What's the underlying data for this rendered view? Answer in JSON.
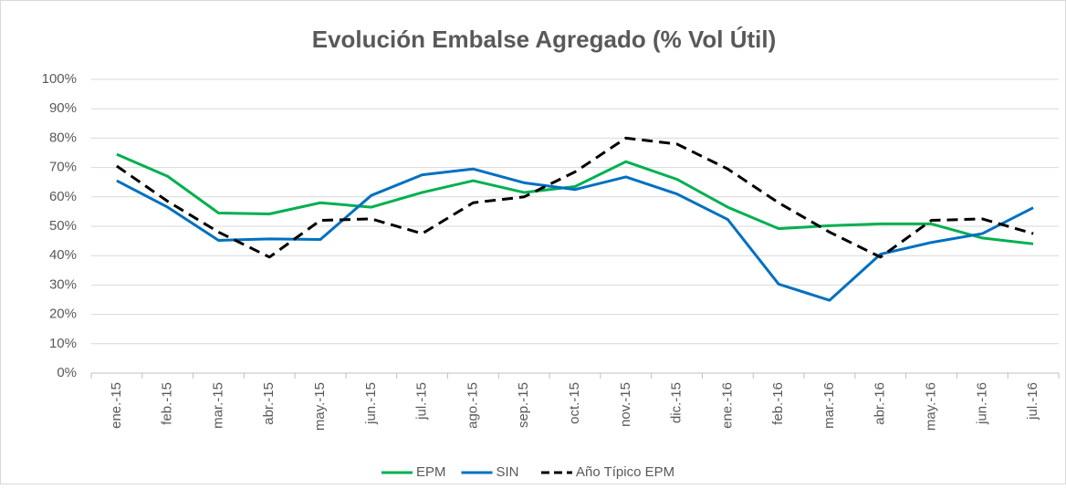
{
  "chart_data": {
    "type": "line",
    "title": "Evolución Embalse Agregado (% Vol Útil)",
    "categories": [
      "ene.-15",
      "feb.-15",
      "mar.-15",
      "abr.-15",
      "may.-15",
      "jun.-15",
      "jul.-15",
      "ago.-15",
      "sep.-15",
      "oct.-15",
      "nov.-15",
      "dic.-15",
      "ene.-16",
      "feb.-16",
      "mar.-16",
      "abr.-16",
      "may.-16",
      "jun.-16",
      "jul.-16"
    ],
    "series": [
      {
        "name": "EPM",
        "color": "#00b050",
        "dashed": false,
        "values": [
          74.5,
          67,
          54.5,
          54.2,
          58,
          56.5,
          61.5,
          65.5,
          61.5,
          63.5,
          72,
          66,
          56.5,
          49.2,
          50.2,
          50.8,
          50.8,
          46,
          44
        ]
      },
      {
        "name": "SIN",
        "color": "#0070c0",
        "dashed": false,
        "values": [
          65.5,
          56.5,
          45.2,
          45.7,
          45.5,
          60.5,
          67.5,
          69.5,
          64.8,
          62.5,
          66.8,
          61,
          52.3,
          30.3,
          24.8,
          40.5,
          44.5,
          47.5,
          56.3
        ]
      },
      {
        "name": "Año Típico EPM",
        "color": "#000000",
        "dashed": true,
        "values": [
          70.5,
          58.5,
          48,
          39.5,
          52,
          52.5,
          47.5,
          58,
          60,
          68.5,
          80,
          78,
          69.5,
          58,
          48,
          39.5,
          52,
          52.5,
          47.5
        ]
      }
    ],
    "ylim": [
      0,
      100
    ],
    "yticks": [
      {
        "value": 0,
        "label": "0%"
      },
      {
        "value": 10,
        "label": "10%"
      },
      {
        "value": 20,
        "label": "20%"
      },
      {
        "value": 30,
        "label": "30%"
      },
      {
        "value": 40,
        "label": "40%"
      },
      {
        "value": 50,
        "label": "50%"
      },
      {
        "value": 60,
        "label": "60%"
      },
      {
        "value": 70,
        "label": "70%"
      },
      {
        "value": 80,
        "label": "80%"
      },
      {
        "value": 90,
        "label": "90%"
      },
      {
        "value": 100,
        "label": "100%"
      }
    ],
    "grid": true,
    "legend": "bottom"
  }
}
